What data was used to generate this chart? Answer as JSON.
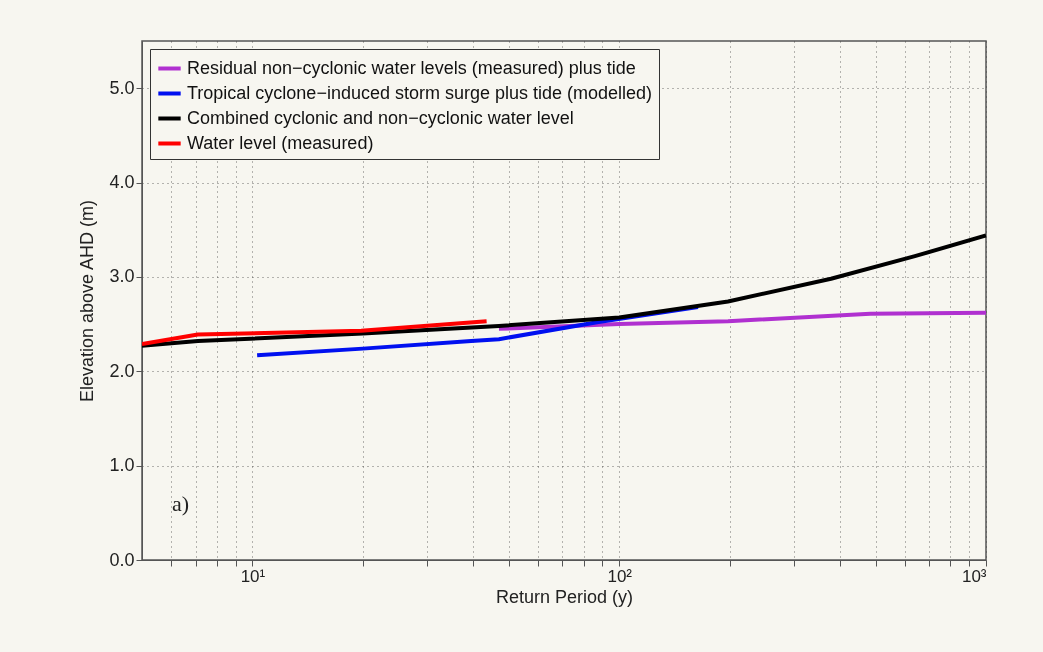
{
  "chart_data": {
    "type": "line",
    "xlabel": "Return Period (y)",
    "ylabel": "Elevation above AHD (m)",
    "log": "x",
    "grid": true,
    "legend": "top left",
    "line_style": "solid",
    "marker": "none",
    "xlim": [
      5,
      1000
    ],
    "ylim": [
      0,
      5.5
    ],
    "xticks": [
      {
        "value": 6,
        "label": null
      },
      {
        "value": 7,
        "label": null
      },
      {
        "value": 8,
        "label": null
      },
      {
        "value": 9,
        "label": null
      },
      {
        "value": 10,
        "label": "10¹"
      },
      {
        "value": 20,
        "label": null
      },
      {
        "value": 30,
        "label": null
      },
      {
        "value": 40,
        "label": null
      },
      {
        "value": 50,
        "label": null
      },
      {
        "value": 60,
        "label": null
      },
      {
        "value": 70,
        "label": null
      },
      {
        "value": 80,
        "label": null
      },
      {
        "value": 90,
        "label": null
      },
      {
        "value": 100,
        "label": "10²"
      },
      {
        "value": 200,
        "label": null
      },
      {
        "value": 300,
        "label": null
      },
      {
        "value": 400,
        "label": null
      },
      {
        "value": 500,
        "label": null
      },
      {
        "value": 600,
        "label": null
      },
      {
        "value": 700,
        "label": null
      },
      {
        "value": 800,
        "label": null
      },
      {
        "value": 900,
        "label": null
      },
      {
        "value": 1000,
        "label": "10³"
      }
    ],
    "yticks": [
      {
        "value": 0,
        "label": "0.0"
      },
      {
        "value": 1,
        "label": "1.0"
      },
      {
        "value": 2,
        "label": "2.0"
      },
      {
        "value": 3,
        "label": "3.0"
      },
      {
        "value": 4,
        "label": "4.0"
      },
      {
        "value": 5,
        "label": "5.0"
      }
    ],
    "series": [
      {
        "name": "Residual non−cyclonic water levels (measured) plus tide",
        "color": "#b030d0",
        "x": [
          47,
          100,
          198,
          484,
          1000
        ],
        "values": [
          2.45,
          2.5,
          2.53,
          2.61,
          2.62
        ]
      },
      {
        "name": "Tropical cyclone−induced storm surge plus tide (modelled)",
        "color": "#0010f0",
        "x": [
          10.3,
          20,
          39.5,
          47,
          87,
          164
        ],
        "values": [
          2.17,
          2.24,
          2.32,
          2.34,
          2.52,
          2.68
        ]
      },
      {
        "name": "Combined cyclonic and non−cyclonic water level",
        "color": "#000000",
        "x": [
          5,
          7.1,
          20,
          47,
          100,
          198,
          378,
          640,
          1000
        ],
        "values": [
          2.27,
          2.32,
          2.4,
          2.48,
          2.57,
          2.74,
          2.98,
          3.22,
          3.44
        ]
      },
      {
        "name": "Water level (measured)",
        "color": "#ff0000",
        "x": [
          5,
          7.1,
          19.8,
          43.5
        ],
        "values": [
          2.29,
          2.39,
          2.43,
          2.53
        ]
      }
    ],
    "annotations": [
      "a)"
    ]
  }
}
